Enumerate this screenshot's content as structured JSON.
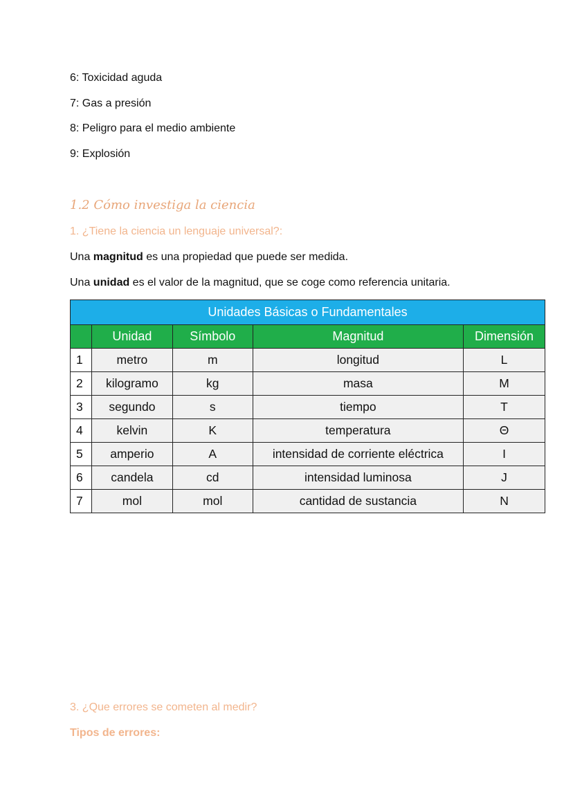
{
  "list": [
    "6: Toxicidad aguda",
    "7: Gas a presión",
    "8: Peligro para el medio ambiente",
    "9: Explosión"
  ],
  "section_title": "1.2 Cómo investiga la ciencia",
  "question1": "1. ¿Tiene la ciencia un lenguaje universal?:",
  "para1": {
    "pre": "Una ",
    "bold": "magnitud",
    "post": " es una propiedad que puede ser medida."
  },
  "para2": {
    "pre": "Una ",
    "bold": "unidad",
    "post": " es el valor de la magnitud, que se coge como referencia unitaria."
  },
  "table": {
    "title": "Unidades Básicas o Fundamentales",
    "headers": [
      "",
      "Unidad",
      "Símbolo",
      "Magnitud",
      "Dimensión"
    ],
    "rows": [
      [
        "1",
        "metro",
        "m",
        "longitud",
        "L"
      ],
      [
        "2",
        "kilogramo",
        "kg",
        "masa",
        "M"
      ],
      [
        "3",
        "segundo",
        "s",
        "tiempo",
        "T"
      ],
      [
        "4",
        "kelvin",
        "K",
        "temperatura",
        "Θ"
      ],
      [
        "5",
        "amperio",
        "A",
        "intensidad de corriente eléctrica",
        "I"
      ],
      [
        "6",
        "candela",
        "cd",
        "intensidad luminosa",
        "J"
      ],
      [
        "7",
        "mol",
        "mol",
        "cantidad de sustancia",
        "N"
      ]
    ],
    "colors": {
      "title_bg": "#1daee8",
      "header_bg": "#20ae4a"
    }
  },
  "question3": "3. ¿Que errores se cometen al medir?",
  "subheading": "Tipos de errores:"
}
